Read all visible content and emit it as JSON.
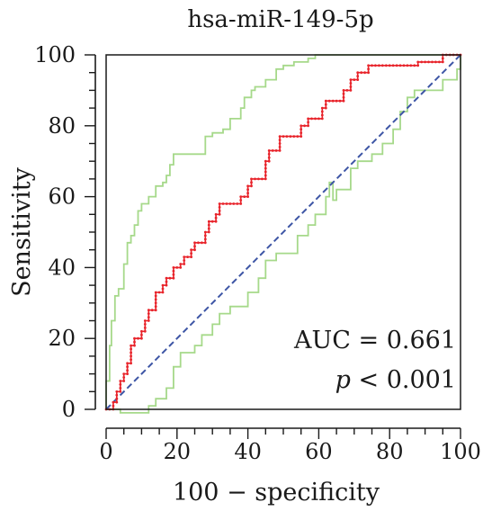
{
  "chart_data": {
    "type": "line",
    "title": "hsa-miR-149-5p",
    "xlabel": "100 − specificity",
    "ylabel": "Sensitivity",
    "xlim": [
      0,
      100
    ],
    "ylim": [
      0,
      100
    ],
    "xticks": [
      "0",
      "20",
      "40",
      "60",
      "80",
      "100"
    ],
    "yticks": [
      "0",
      "20",
      "40",
      "60",
      "80",
      "100"
    ],
    "grid": false,
    "annotations": {
      "auc": "AUC = 0.661",
      "p_symbol": "p",
      "p_rest": " < 0.001"
    },
    "series": [
      {
        "role": "roc",
        "color": "#e8232a",
        "markers": true,
        "points": [
          [
            0,
            0
          ],
          [
            2,
            0
          ],
          [
            2,
            2
          ],
          [
            3,
            2
          ],
          [
            3,
            5
          ],
          [
            4,
            5
          ],
          [
            4,
            8
          ],
          [
            5,
            8
          ],
          [
            5,
            10
          ],
          [
            6,
            10
          ],
          [
            6,
            13
          ],
          [
            7,
            13
          ],
          [
            7,
            18
          ],
          [
            8,
            18
          ],
          [
            8,
            20
          ],
          [
            10,
            20
          ],
          [
            10,
            22
          ],
          [
            11,
            22
          ],
          [
            11,
            25
          ],
          [
            12,
            25
          ],
          [
            12,
            28
          ],
          [
            14,
            28
          ],
          [
            14,
            33
          ],
          [
            16,
            33
          ],
          [
            16,
            35
          ],
          [
            17,
            35
          ],
          [
            17,
            37
          ],
          [
            19,
            37
          ],
          [
            19,
            40
          ],
          [
            21,
            40
          ],
          [
            21,
            41
          ],
          [
            22,
            41
          ],
          [
            22,
            43
          ],
          [
            24,
            43
          ],
          [
            24,
            45
          ],
          [
            25,
            45
          ],
          [
            25,
            47
          ],
          [
            28,
            47
          ],
          [
            28,
            50
          ],
          [
            29,
            50
          ],
          [
            29,
            53
          ],
          [
            31,
            53
          ],
          [
            31,
            55
          ],
          [
            32,
            55
          ],
          [
            32,
            58
          ],
          [
            38,
            58
          ],
          [
            38,
            60
          ],
          [
            40,
            60
          ],
          [
            40,
            63
          ],
          [
            41,
            63
          ],
          [
            41,
            65
          ],
          [
            45,
            65
          ],
          [
            45,
            70
          ],
          [
            46,
            70
          ],
          [
            46,
            73
          ],
          [
            49,
            73
          ],
          [
            49,
            77
          ],
          [
            55,
            77
          ],
          [
            55,
            80
          ],
          [
            57,
            80
          ],
          [
            57,
            82
          ],
          [
            61,
            82
          ],
          [
            61,
            85
          ],
          [
            62,
            85
          ],
          [
            62,
            87
          ],
          [
            67,
            87
          ],
          [
            67,
            90
          ],
          [
            69,
            90
          ],
          [
            69,
            93
          ],
          [
            71,
            93
          ],
          [
            71,
            95
          ],
          [
            74,
            95
          ],
          [
            74,
            97
          ],
          [
            88,
            97
          ],
          [
            88,
            98
          ],
          [
            95,
            98
          ],
          [
            95,
            100
          ],
          [
            100,
            100
          ]
        ]
      },
      {
        "role": "upper-ci",
        "color": "#a6d98a",
        "markers": false,
        "points": [
          [
            0,
            0
          ],
          [
            0,
            8
          ],
          [
            1,
            8
          ],
          [
            1,
            18
          ],
          [
            1.5,
            18
          ],
          [
            1.5,
            25
          ],
          [
            2.5,
            25
          ],
          [
            2.5,
            32
          ],
          [
            3.5,
            32
          ],
          [
            3.5,
            34
          ],
          [
            5,
            34
          ],
          [
            5,
            41
          ],
          [
            6,
            41
          ],
          [
            6,
            47
          ],
          [
            7,
            47
          ],
          [
            7,
            49
          ],
          [
            8,
            49
          ],
          [
            8,
            52
          ],
          [
            9,
            52
          ],
          [
            9,
            56
          ],
          [
            10,
            56
          ],
          [
            10,
            58
          ],
          [
            12,
            58
          ],
          [
            12,
            60
          ],
          [
            14,
            60
          ],
          [
            14,
            63
          ],
          [
            16,
            63
          ],
          [
            16,
            64
          ],
          [
            17,
            64
          ],
          [
            17,
            66
          ],
          [
            18,
            66
          ],
          [
            18,
            69
          ],
          [
            19,
            69
          ],
          [
            19,
            72
          ],
          [
            28,
            72
          ],
          [
            28,
            77
          ],
          [
            30,
            77
          ],
          [
            30,
            78
          ],
          [
            33,
            78
          ],
          [
            33,
            79
          ],
          [
            35,
            79
          ],
          [
            35,
            82
          ],
          [
            38,
            82
          ],
          [
            38,
            85
          ],
          [
            39,
            85
          ],
          [
            39,
            88
          ],
          [
            41,
            88
          ],
          [
            41,
            90
          ],
          [
            42,
            90
          ],
          [
            42,
            91
          ],
          [
            45,
            91
          ],
          [
            45,
            93
          ],
          [
            48,
            93
          ],
          [
            48,
            96
          ],
          [
            50,
            96
          ],
          [
            50,
            97
          ],
          [
            53,
            97
          ],
          [
            53,
            98
          ],
          [
            57,
            98
          ],
          [
            57,
            99
          ],
          [
            59,
            99
          ],
          [
            59,
            100
          ],
          [
            100,
            100
          ]
        ]
      },
      {
        "role": "lower-ci",
        "color": "#a6d98a",
        "markers": false,
        "points": [
          [
            0,
            0
          ],
          [
            4,
            0
          ],
          [
            4,
            -1
          ],
          [
            12,
            -1
          ],
          [
            12,
            1
          ],
          [
            14,
            1
          ],
          [
            14,
            3
          ],
          [
            17,
            3
          ],
          [
            17,
            6
          ],
          [
            19,
            6
          ],
          [
            19,
            12
          ],
          [
            21,
            12
          ],
          [
            21,
            16
          ],
          [
            25,
            16
          ],
          [
            25,
            18
          ],
          [
            27,
            18
          ],
          [
            27,
            21
          ],
          [
            30,
            21
          ],
          [
            30,
            24
          ],
          [
            32,
            24
          ],
          [
            32,
            27
          ],
          [
            35,
            27
          ],
          [
            35,
            29
          ],
          [
            40,
            29
          ],
          [
            40,
            33
          ],
          [
            43,
            33
          ],
          [
            43,
            37
          ],
          [
            45,
            37
          ],
          [
            45,
            42
          ],
          [
            48,
            42
          ],
          [
            48,
            44
          ],
          [
            54,
            44
          ],
          [
            54,
            49
          ],
          [
            57,
            49
          ],
          [
            57,
            52
          ],
          [
            59,
            52
          ],
          [
            59,
            55
          ],
          [
            62,
            55
          ],
          [
            62,
            60
          ],
          [
            63,
            60
          ],
          [
            63,
            64
          ],
          [
            64,
            64
          ],
          [
            64,
            59
          ],
          [
            65,
            59
          ],
          [
            65,
            62
          ],
          [
            69,
            62
          ],
          [
            69,
            68
          ],
          [
            71,
            68
          ],
          [
            71,
            70
          ],
          [
            75,
            70
          ],
          [
            75,
            72
          ],
          [
            78,
            72
          ],
          [
            78,
            75
          ],
          [
            81,
            75
          ],
          [
            81,
            79
          ],
          [
            83,
            79
          ],
          [
            83,
            84
          ],
          [
            85,
            84
          ],
          [
            85,
            88
          ],
          [
            87,
            88
          ],
          [
            87,
            90
          ],
          [
            95,
            90
          ],
          [
            95,
            93
          ],
          [
            99,
            93
          ],
          [
            99,
            96
          ],
          [
            100,
            96
          ],
          [
            100,
            100
          ]
        ]
      },
      {
        "role": "reference",
        "color": "#3d55a5",
        "dashed": true,
        "points": [
          [
            0,
            0
          ],
          [
            100,
            100
          ]
        ]
      }
    ]
  }
}
